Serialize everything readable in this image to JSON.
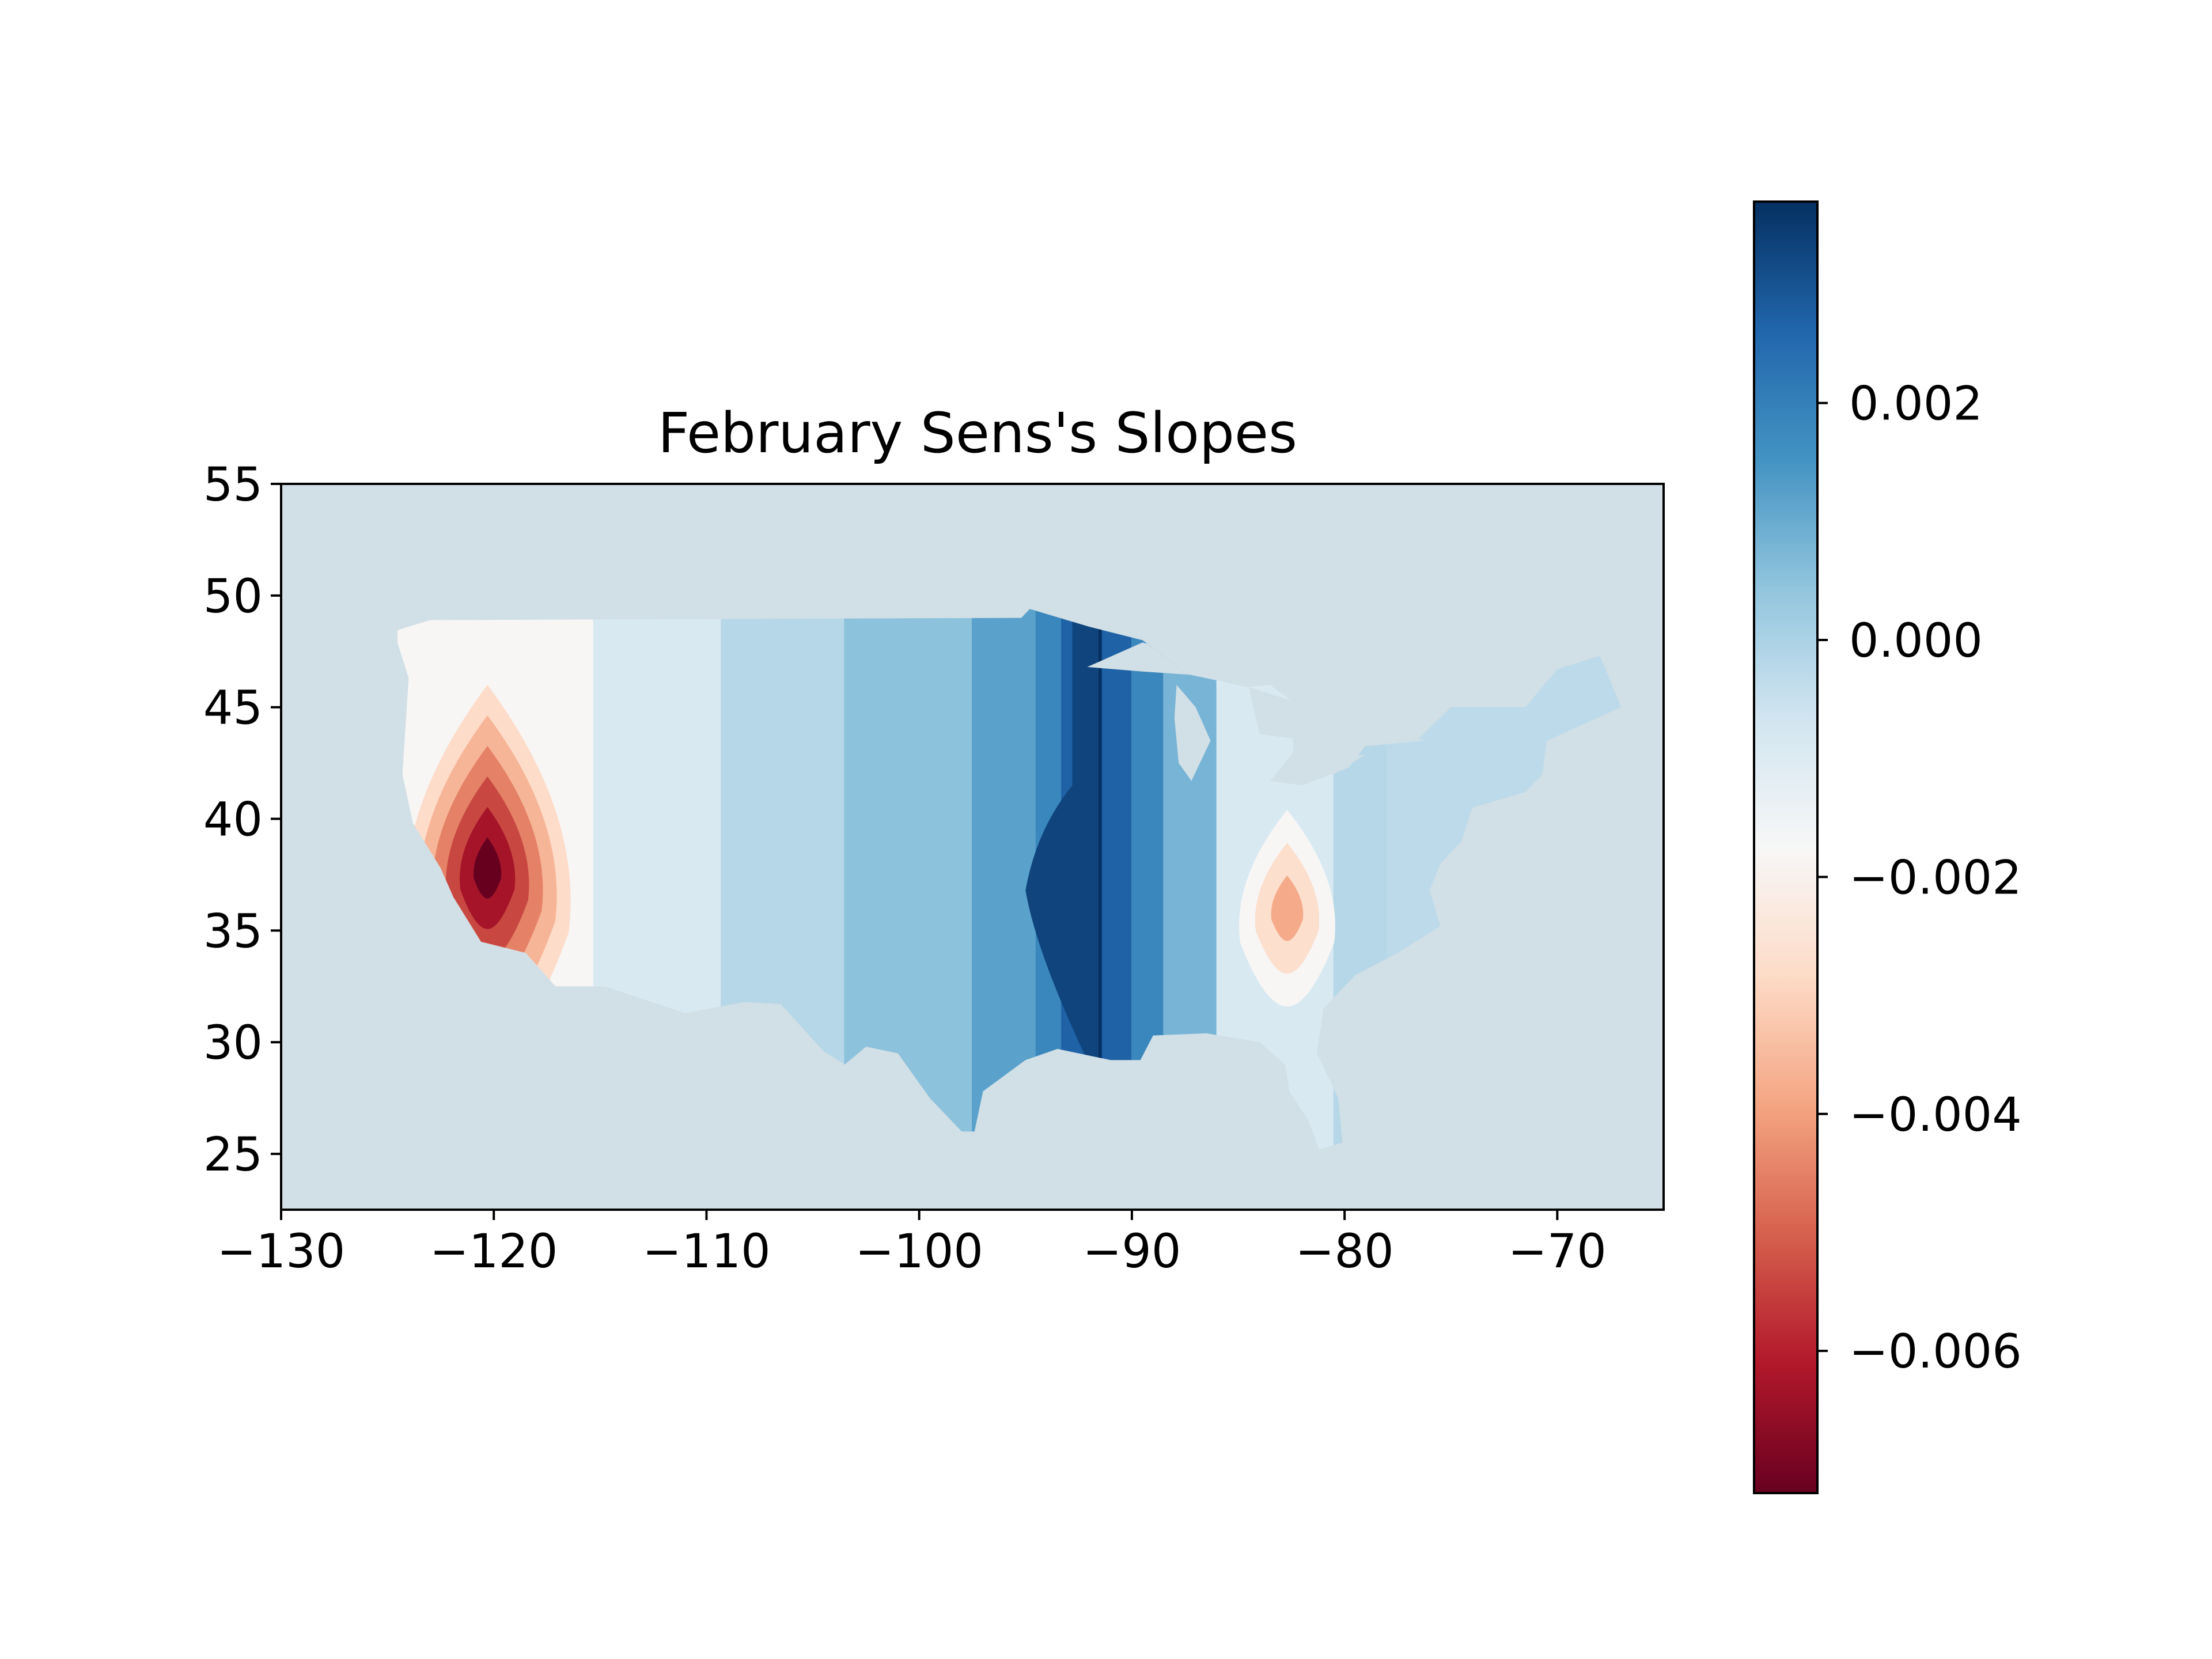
{
  "chart_data": {
    "type": "map-contour",
    "title": "February Sens's Slopes",
    "xlabel": "",
    "ylabel": "",
    "xlim": [
      -130,
      -65
    ],
    "ylim": [
      22.5,
      55
    ],
    "xticks": [
      "−130",
      "−120",
      "−110",
      "−100",
      "−90",
      "−80",
      "−70"
    ],
    "xtick_values": [
      -130,
      -120,
      -110,
      -100,
      -90,
      -80,
      -70
    ],
    "yticks": [
      "25",
      "30",
      "35",
      "40",
      "45",
      "50",
      "55"
    ],
    "ytick_values": [
      25,
      30,
      35,
      40,
      45,
      50,
      55
    ],
    "colormap": "RdBu",
    "colorbar": {
      "range": [
        -0.0072,
        0.0037
      ],
      "ticks": [
        "0.002",
        "0.000",
        "−0.002",
        "−0.004",
        "−0.006"
      ],
      "tick_values": [
        0.002,
        0.0,
        -0.002,
        -0.004,
        -0.006
      ]
    },
    "background_color": "#d1dfe6",
    "bands_by_longitude": [
      {
        "lon": [
          -124.5,
          -115.3
        ],
        "value": -0.0018
      },
      {
        "lon": [
          -115.3,
          -109.3
        ],
        "value": -0.0009
      },
      {
        "lon": [
          -109.3,
          -103.5
        ],
        "value": -0.0002
      },
      {
        "lon": [
          -103.5,
          -97.5
        ],
        "value": 0.0005
      },
      {
        "lon": [
          -97.5,
          -94.5
        ],
        "value": 0.0012
      },
      {
        "lon": [
          -94.5,
          -93.3
        ],
        "value": 0.0018
      },
      {
        "lon": [
          -93.3,
          -90.0
        ],
        "value": 0.0027
      },
      {
        "lon": [
          -90.0,
          -88.5
        ],
        "value": 0.0018
      },
      {
        "lon": [
          -88.5,
          -86.0
        ],
        "value": 0.0008
      },
      {
        "lon": [
          -86.0,
          -80.5
        ],
        "value": -0.0009
      },
      {
        "lon": [
          -80.5,
          -78.0
        ],
        "value": -0.0002
      },
      {
        "lon": [
          -78.0,
          -67.0
        ],
        "value": -0.0003
      }
    ],
    "extrema": [
      {
        "lon": -120.3,
        "lat": 37.8,
        "value": -0.0072
      },
      {
        "lon": -82.7,
        "lat": 36.0,
        "value": -0.0038
      },
      {
        "lon": -91.5,
        "lat": 36.8,
        "value": 0.0036
      }
    ]
  }
}
